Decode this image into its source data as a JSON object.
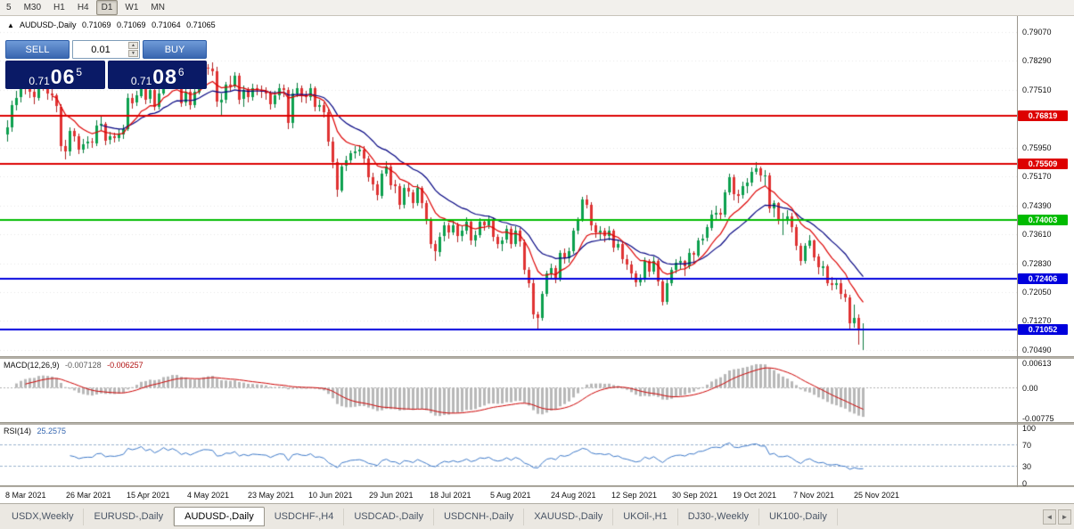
{
  "toolbar": {
    "timeframes": [
      "5",
      "M30",
      "H1",
      "H4",
      "D1",
      "W1",
      "MN"
    ],
    "active_timeframe": "D1"
  },
  "chart_header": {
    "symbol_label": "AUDUSD-,Daily",
    "open": "0.71069",
    "high": "0.71069",
    "low": "0.71064",
    "close": "0.71065"
  },
  "trade_panel": {
    "sell_label": "SELL",
    "buy_label": "BUY",
    "volume": "0.01",
    "sell_price_small": "0.71",
    "sell_price_big": "06",
    "sell_price_sup": "5",
    "buy_price_small": "0.71",
    "buy_price_big": "08",
    "buy_price_sup": "6"
  },
  "price_axis": {
    "labels": [
      "0.79070",
      "0.78290",
      "0.77510",
      "0.75950",
      "0.75170",
      "0.74390",
      "0.73610",
      "0.72830",
      "0.72050",
      "0.71270",
      "0.70490"
    ]
  },
  "hlines": [
    {
      "value": 0.76819,
      "label": "0.76819",
      "color": "#dd0000"
    },
    {
      "value": 0.75509,
      "label": "0.75509",
      "color": "#dd0000"
    },
    {
      "value": 0.74003,
      "label": "0.74003",
      "color": "#00bb00"
    },
    {
      "value": 0.72406,
      "label": "0.72406",
      "color": "#0000dd"
    },
    {
      "value": 0.71052,
      "label": "0.71052",
      "color": "#0000dd"
    }
  ],
  "indicators": {
    "macd": {
      "label": "MACD(12,26,9)",
      "value_main": "-0.007128",
      "value_signal": "-0.006257",
      "axis_labels": [
        "0.00613",
        "0.00",
        "-0.00775"
      ],
      "fast": 12,
      "slow": 26,
      "signal": 9
    },
    "rsi": {
      "label": "RSI(14)",
      "value": "25.2575",
      "period": 14,
      "axis_labels": [
        "100",
        "70",
        "30",
        "0"
      ],
      "levels": [
        70,
        30
      ]
    }
  },
  "time_axis": {
    "labels": [
      "8 Mar 2021",
      "26 Mar 2021",
      "15 Apr 2021",
      "4 May 2021",
      "23 May 2021",
      "10 Jun 2021",
      "29 Jun 2021",
      "18 Jul 2021",
      "5 Aug 2021",
      "24 Aug 2021",
      "12 Sep 2021",
      "30 Sep 2021",
      "19 Oct 2021",
      "7 Nov 2021",
      "25 Nov 2021"
    ]
  },
  "tabs": {
    "active_index": 2,
    "items": [
      "USDX,Weekly",
      "EURUSD-,Daily",
      "AUDUSD-,Daily",
      "USDCHF-,H4",
      "USDCAD-,Daily",
      "USDCNH-,Daily",
      "XAUUSD-,Daily",
      "UKOil-,H1",
      "DJ30-,Weekly",
      "UK100-,Daily"
    ]
  },
  "tab_scroll": {
    "left_icon": "◄",
    "right_icon": "►"
  },
  "colors": {
    "candle_up": "#0ca04e",
    "candle_up_wick": "#0a7a3c",
    "candle_down": "#e03232",
    "candle_down_wick": "#b02020",
    "ma_fast": "#dd0000",
    "ma_slow": "#000080",
    "macd_hist": "#b8b8b8",
    "macd_signal": "#cc0000",
    "rsi_line": "#3c78c8",
    "rsi_level": "#9ab0cc",
    "grid": "rgba(0,0,0,0.10)",
    "price_box": "#0a1a66",
    "trade_button": "#3966b0"
  },
  "chart_data": {
    "type": "candlestick",
    "symbol": "AUDUSD-",
    "timeframe": "Daily",
    "visible_price_range": [
      0.7032,
      0.795
    ],
    "open_rule": "candles are [high, low, close]; open = previous close",
    "first_open": 0.763,
    "moving_averages": [
      {
        "period": 10,
        "color": "#dd0000"
      },
      {
        "period": 21,
        "color": "#000080"
      }
    ],
    "candles": [
      [
        0.7668,
        0.7612,
        0.765
      ],
      [
        0.7722,
        0.7638,
        0.771
      ],
      [
        0.7748,
        0.7695,
        0.773
      ],
      [
        0.7772,
        0.7718,
        0.776
      ],
      [
        0.7775,
        0.7738,
        0.7755
      ],
      [
        0.7768,
        0.7728,
        0.7745
      ],
      [
        0.7758,
        0.7712,
        0.773
      ],
      [
        0.7805,
        0.7722,
        0.779
      ],
      [
        0.7798,
        0.7748,
        0.776
      ],
      [
        0.7772,
        0.7725,
        0.774
      ],
      [
        0.7755,
        0.7722,
        0.7735
      ],
      [
        0.7742,
        0.769,
        0.7705
      ],
      [
        0.7712,
        0.7585,
        0.76
      ],
      [
        0.7615,
        0.7562,
        0.7585
      ],
      [
        0.765,
        0.7572,
        0.764
      ],
      [
        0.7648,
        0.7612,
        0.7625
      ],
      [
        0.7632,
        0.7578,
        0.759
      ],
      [
        0.7618,
        0.758,
        0.7605
      ],
      [
        0.7625,
        0.7592,
        0.761
      ],
      [
        0.762,
        0.7595,
        0.7608
      ],
      [
        0.7668,
        0.76,
        0.7655
      ],
      [
        0.7678,
        0.7642,
        0.766
      ],
      [
        0.7665,
        0.7602,
        0.7615
      ],
      [
        0.7638,
        0.7605,
        0.7625
      ],
      [
        0.7635,
        0.7608,
        0.762
      ],
      [
        0.7645,
        0.761,
        0.763
      ],
      [
        0.7658,
        0.7618,
        0.7645
      ],
      [
        0.7742,
        0.764,
        0.773
      ],
      [
        0.774,
        0.77,
        0.7715
      ],
      [
        0.7748,
        0.7708,
        0.7735
      ],
      [
        0.7785,
        0.7728,
        0.777
      ],
      [
        0.7778,
        0.7712,
        0.7725
      ],
      [
        0.7762,
        0.7715,
        0.775
      ],
      [
        0.7758,
        0.7695,
        0.7705
      ],
      [
        0.7752,
        0.7698,
        0.774
      ],
      [
        0.7815,
        0.7735,
        0.78
      ],
      [
        0.7812,
        0.7755,
        0.7765
      ],
      [
        0.7818,
        0.7758,
        0.78
      ],
      [
        0.781,
        0.7762,
        0.777
      ],
      [
        0.778,
        0.7705,
        0.7715
      ],
      [
        0.7758,
        0.7708,
        0.7745
      ],
      [
        0.7752,
        0.7698,
        0.771
      ],
      [
        0.7755,
        0.7702,
        0.7745
      ],
      [
        0.7792,
        0.7738,
        0.778
      ],
      [
        0.7818,
        0.7775,
        0.781
      ],
      [
        0.782,
        0.7792,
        0.7808
      ],
      [
        0.7825,
        0.7788,
        0.78
      ],
      [
        0.7812,
        0.7705,
        0.7718
      ],
      [
        0.774,
        0.7682,
        0.7725
      ],
      [
        0.7772,
        0.7715,
        0.7765
      ],
      [
        0.7788,
        0.7745,
        0.776
      ],
      [
        0.7798,
        0.7755,
        0.779
      ],
      [
        0.7795,
        0.7712,
        0.7725
      ],
      [
        0.7762,
        0.7705,
        0.775
      ],
      [
        0.7758,
        0.7718,
        0.773
      ],
      [
        0.7768,
        0.7722,
        0.7755
      ],
      [
        0.7765,
        0.7735,
        0.775
      ],
      [
        0.7762,
        0.773,
        0.7745
      ],
      [
        0.7758,
        0.7725,
        0.774
      ],
      [
        0.7748,
        0.7698,
        0.771
      ],
      [
        0.7748,
        0.7702,
        0.7735
      ],
      [
        0.7768,
        0.7725,
        0.7755
      ],
      [
        0.7765,
        0.7732,
        0.775
      ],
      [
        0.7758,
        0.7645,
        0.766
      ],
      [
        0.7752,
        0.7648,
        0.774
      ],
      [
        0.777,
        0.7732,
        0.7755
      ],
      [
        0.7762,
        0.7718,
        0.7735
      ],
      [
        0.7748,
        0.7715,
        0.773
      ],
      [
        0.7768,
        0.7722,
        0.7755
      ],
      [
        0.776,
        0.7692,
        0.7705
      ],
      [
        0.7725,
        0.7692,
        0.771
      ],
      [
        0.7718,
        0.7675,
        0.769
      ],
      [
        0.7698,
        0.7598,
        0.761
      ],
      [
        0.7622,
        0.754,
        0.7555
      ],
      [
        0.7565,
        0.7462,
        0.748
      ],
      [
        0.7552,
        0.7475,
        0.7545
      ],
      [
        0.7572,
        0.7532,
        0.756
      ],
      [
        0.7588,
        0.7548,
        0.758
      ],
      [
        0.7598,
        0.7565,
        0.7585
      ],
      [
        0.7602,
        0.7572,
        0.759
      ],
      [
        0.7598,
        0.7552,
        0.7565
      ],
      [
        0.7572,
        0.7502,
        0.7515
      ],
      [
        0.7528,
        0.7478,
        0.7495
      ],
      [
        0.7505,
        0.7452,
        0.7465
      ],
      [
        0.7535,
        0.7458,
        0.7525
      ],
      [
        0.7558,
        0.7518,
        0.7545
      ],
      [
        0.7552,
        0.7482,
        0.7495
      ],
      [
        0.7508,
        0.7472,
        0.749
      ],
      [
        0.7498,
        0.7428,
        0.744
      ],
      [
        0.7495,
        0.7432,
        0.7485
      ],
      [
        0.7498,
        0.7462,
        0.7475
      ],
      [
        0.7482,
        0.7432,
        0.7445
      ],
      [
        0.7495,
        0.7438,
        0.7485
      ],
      [
        0.7492,
        0.743,
        0.7445
      ],
      [
        0.7452,
        0.7388,
        0.74
      ],
      [
        0.7408,
        0.7322,
        0.7335
      ],
      [
        0.7345,
        0.729,
        0.7315
      ],
      [
        0.7365,
        0.7302,
        0.7355
      ],
      [
        0.7395,
        0.7342,
        0.7385
      ],
      [
        0.7392,
        0.735,
        0.7365
      ],
      [
        0.7398,
        0.7358,
        0.7385
      ],
      [
        0.7392,
        0.734,
        0.7355
      ],
      [
        0.7382,
        0.7342,
        0.737
      ],
      [
        0.7408,
        0.7362,
        0.7395
      ],
      [
        0.7402,
        0.7332,
        0.7345
      ],
      [
        0.7372,
        0.7328,
        0.736
      ],
      [
        0.7405,
        0.7352,
        0.7395
      ],
      [
        0.7402,
        0.7372,
        0.7385
      ],
      [
        0.7412,
        0.7375,
        0.74
      ],
      [
        0.7408,
        0.7342,
        0.7355
      ],
      [
        0.7362,
        0.7322,
        0.7335
      ],
      [
        0.7355,
        0.7315,
        0.7345
      ],
      [
        0.7385,
        0.7338,
        0.7375
      ],
      [
        0.7382,
        0.7322,
        0.7335
      ],
      [
        0.7382,
        0.7328,
        0.737
      ],
      [
        0.7378,
        0.7328,
        0.734
      ],
      [
        0.7348,
        0.7252,
        0.7265
      ],
      [
        0.7272,
        0.7218,
        0.723
      ],
      [
        0.7242,
        0.7132,
        0.7145
      ],
      [
        0.7152,
        0.7106,
        0.7135
      ],
      [
        0.7208,
        0.7128,
        0.72
      ],
      [
        0.7262,
        0.7192,
        0.7255
      ],
      [
        0.7282,
        0.7242,
        0.727
      ],
      [
        0.7278,
        0.7228,
        0.724
      ],
      [
        0.7318,
        0.7235,
        0.731
      ],
      [
        0.7322,
        0.7282,
        0.7295
      ],
      [
        0.7325,
        0.7285,
        0.7315
      ],
      [
        0.7378,
        0.7308,
        0.737
      ],
      [
        0.7408,
        0.7362,
        0.74
      ],
      [
        0.7462,
        0.7395,
        0.7455
      ],
      [
        0.7468,
        0.7432,
        0.744
      ],
      [
        0.7448,
        0.7372,
        0.7385
      ],
      [
        0.7392,
        0.7352,
        0.7365
      ],
      [
        0.7382,
        0.7348,
        0.737
      ],
      [
        0.7378,
        0.734,
        0.7355
      ],
      [
        0.7382,
        0.7345,
        0.737
      ],
      [
        0.7375,
        0.7312,
        0.7325
      ],
      [
        0.7345,
        0.7318,
        0.7335
      ],
      [
        0.7342,
        0.7282,
        0.7295
      ],
      [
        0.7305,
        0.7265,
        0.728
      ],
      [
        0.7288,
        0.7242,
        0.7255
      ],
      [
        0.7262,
        0.722,
        0.723
      ],
      [
        0.7252,
        0.7222,
        0.724
      ],
      [
        0.7298,
        0.7232,
        0.729
      ],
      [
        0.7295,
        0.7245,
        0.726
      ],
      [
        0.7302,
        0.7252,
        0.729
      ],
      [
        0.7295,
        0.7222,
        0.7235
      ],
      [
        0.7242,
        0.717,
        0.718
      ],
      [
        0.7238,
        0.7172,
        0.723
      ],
      [
        0.7272,
        0.7222,
        0.7265
      ],
      [
        0.7295,
        0.7255,
        0.7285
      ],
      [
        0.7302,
        0.7268,
        0.729
      ],
      [
        0.7292,
        0.7248,
        0.7275
      ],
      [
        0.7322,
        0.7268,
        0.731
      ],
      [
        0.7315,
        0.7282,
        0.7305
      ],
      [
        0.7352,
        0.7298,
        0.7345
      ],
      [
        0.7362,
        0.7332,
        0.735
      ],
      [
        0.7388,
        0.7342,
        0.738
      ],
      [
        0.7425,
        0.7372,
        0.7415
      ],
      [
        0.7438,
        0.7402,
        0.742
      ],
      [
        0.7432,
        0.7398,
        0.7415
      ],
      [
        0.7482,
        0.7408,
        0.7475
      ],
      [
        0.7525,
        0.7468,
        0.7515
      ],
      [
        0.7522,
        0.7452,
        0.747
      ],
      [
        0.7482,
        0.7445,
        0.7465
      ],
      [
        0.7502,
        0.7458,
        0.749
      ],
      [
        0.7512,
        0.7472,
        0.75
      ],
      [
        0.7542,
        0.7492,
        0.753
      ],
      [
        0.7555,
        0.7522,
        0.754
      ],
      [
        0.7545,
        0.7502,
        0.752
      ],
      [
        0.7535,
        0.7492,
        0.752
      ],
      [
        0.7528,
        0.7418,
        0.743
      ],
      [
        0.7452,
        0.7408,
        0.7445
      ],
      [
        0.7448,
        0.7388,
        0.74
      ],
      [
        0.7418,
        0.736,
        0.74
      ],
      [
        0.7425,
        0.7388,
        0.741
      ],
      [
        0.7418,
        0.7365,
        0.738
      ],
      [
        0.7388,
        0.7318,
        0.733
      ],
      [
        0.7338,
        0.7276,
        0.729
      ],
      [
        0.7338,
        0.7282,
        0.733
      ],
      [
        0.7358,
        0.7322,
        0.7345
      ],
      [
        0.7348,
        0.7288,
        0.73
      ],
      [
        0.7308,
        0.7252,
        0.727
      ],
      [
        0.7288,
        0.7248,
        0.7275
      ],
      [
        0.728,
        0.7222,
        0.723
      ],
      [
        0.7245,
        0.721,
        0.7225
      ],
      [
        0.7242,
        0.7212,
        0.723
      ],
      [
        0.7238,
        0.7185,
        0.72
      ],
      [
        0.7212,
        0.7178,
        0.719
      ],
      [
        0.7198,
        0.7105,
        0.712
      ],
      [
        0.7172,
        0.7108,
        0.7135
      ],
      [
        0.7145,
        0.7063,
        0.7105
      ],
      [
        0.7122,
        0.7049,
        0.7106
      ]
    ]
  }
}
